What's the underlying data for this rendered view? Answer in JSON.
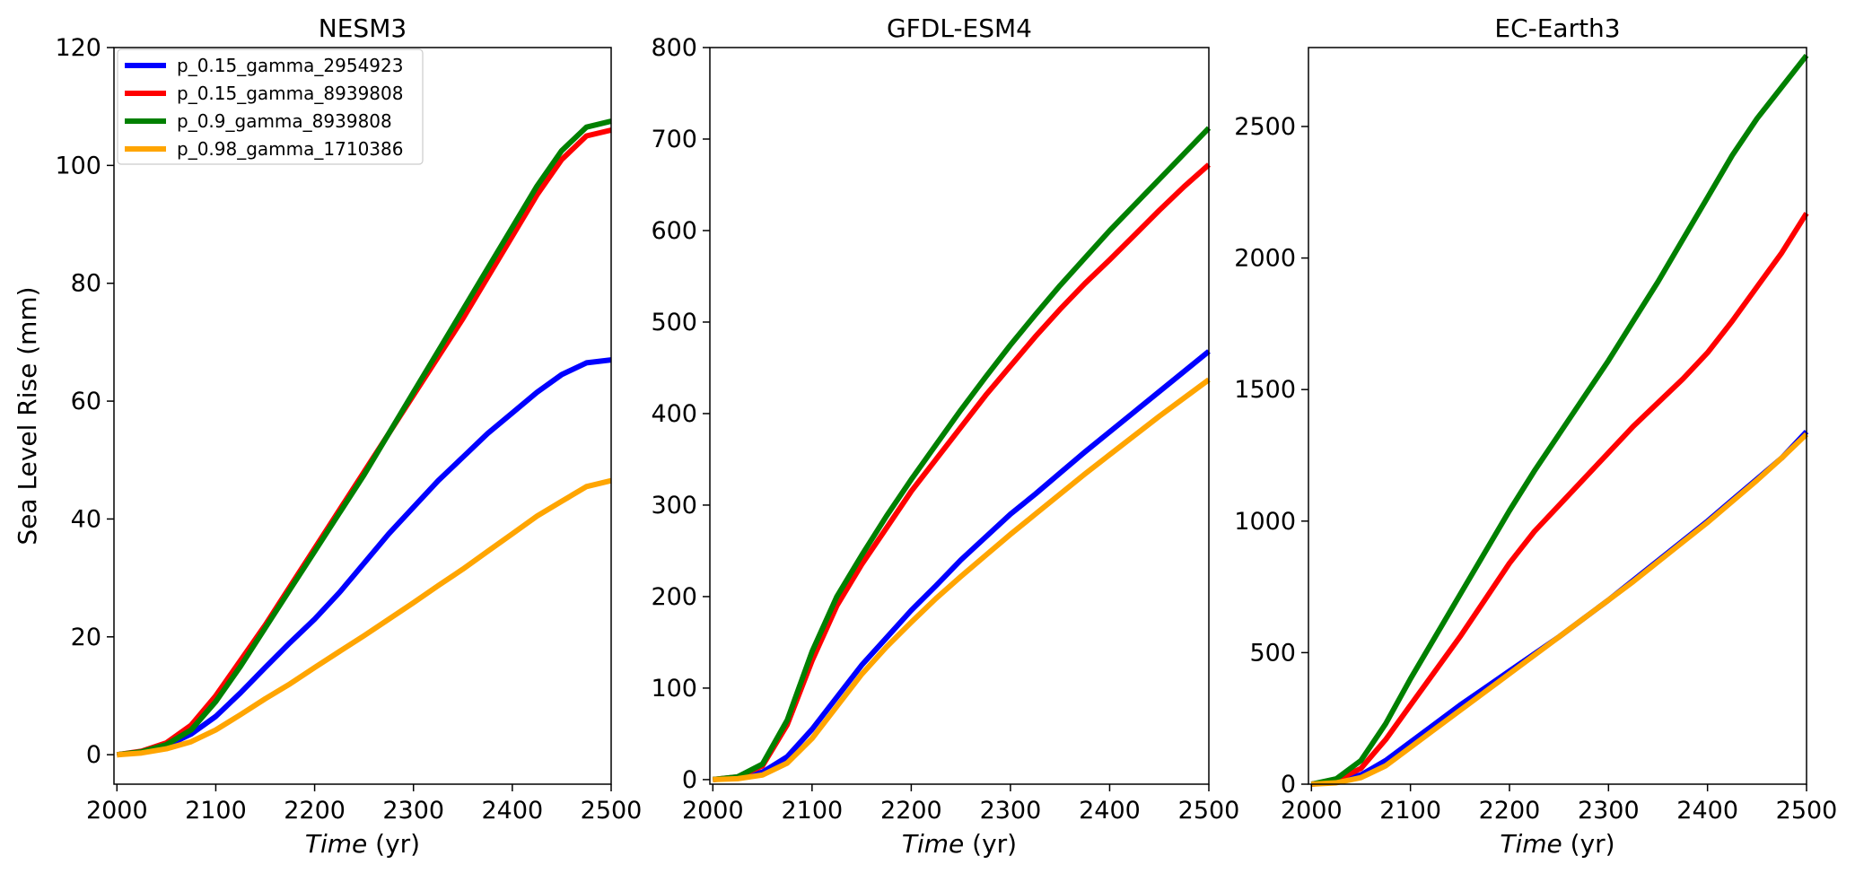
{
  "chart_data": [
    {
      "type": "line",
      "title": "NESM3",
      "xlabel_italic": "Time",
      "xlabel_unit": " (yr)",
      "ylabel": "Sea Level Rise (mm)",
      "xlim": [
        1997,
        2500
      ],
      "ylim": [
        -5,
        120
      ],
      "xticks": [
        2000,
        2100,
        2200,
        2300,
        2400,
        2500
      ],
      "yticks": [
        0,
        20,
        40,
        60,
        80,
        100,
        120
      ],
      "legend": "upper-left",
      "grid": false,
      "x": [
        2000,
        2025,
        2050,
        2075,
        2100,
        2125,
        2150,
        2175,
        2200,
        2225,
        2250,
        2275,
        2300,
        2325,
        2350,
        2375,
        2400,
        2425,
        2450,
        2475,
        2500
      ],
      "series": [
        {
          "name": "p_0.15_gamma_2954923",
          "color": "#0000ff",
          "values": [
            0,
            0.5,
            1.5,
            3.5,
            6.5,
            10.5,
            14.8,
            19.0,
            23.0,
            27.5,
            32.5,
            37.5,
            42.0,
            46.5,
            50.5,
            54.5,
            58.0,
            61.5,
            64.5,
            66.5,
            67.0
          ]
        },
        {
          "name": "p_0.15_gamma_8939808",
          "color": "#ff0000",
          "values": [
            0,
            0.6,
            2.0,
            5.0,
            10.0,
            16.0,
            22.0,
            28.5,
            35.0,
            41.5,
            48.0,
            54.5,
            61.0,
            67.5,
            74.0,
            81.0,
            88.0,
            95.0,
            101.0,
            105.0,
            106.0
          ]
        },
        {
          "name": "p_0.9_gamma_8939808",
          "color": "#008000",
          "values": [
            0,
            0.5,
            1.7,
            4.2,
            9.0,
            15.0,
            21.5,
            28.0,
            34.5,
            41.0,
            47.5,
            54.5,
            61.5,
            68.5,
            75.5,
            82.5,
            89.5,
            96.5,
            102.5,
            106.5,
            107.5
          ]
        },
        {
          "name": "p_0.98_gamma_1710386",
          "color": "#ffa500",
          "values": [
            0,
            0.3,
            1.0,
            2.2,
            4.2,
            6.8,
            9.5,
            12.0,
            14.8,
            17.5,
            20.2,
            23.0,
            25.8,
            28.7,
            31.5,
            34.5,
            37.5,
            40.5,
            43.0,
            45.5,
            46.5
          ]
        }
      ]
    },
    {
      "type": "line",
      "title": "GFDL-ESM4",
      "xlabel_italic": "Time",
      "xlabel_unit": " (yr)",
      "ylabel": "",
      "xlim": [
        1997,
        2500
      ],
      "ylim": [
        -5,
        800
      ],
      "xticks": [
        2000,
        2100,
        2200,
        2300,
        2400,
        2500
      ],
      "yticks": [
        0,
        100,
        200,
        300,
        400,
        500,
        600,
        700,
        800
      ],
      "grid": false,
      "x": [
        2000,
        2025,
        2050,
        2075,
        2100,
        2125,
        2150,
        2175,
        2200,
        2225,
        2250,
        2275,
        2300,
        2325,
        2350,
        2375,
        2400,
        2425,
        2450,
        2475,
        2500
      ],
      "series": [
        {
          "name": "p_0.15_gamma_2954923",
          "color": "#0000ff",
          "values": [
            0,
            2,
            8,
            25,
            55,
            90,
            125,
            155,
            185,
            212,
            240,
            265,
            290,
            312,
            335,
            358,
            380,
            402,
            424,
            446,
            468
          ]
        },
        {
          "name": "p_0.15_gamma_8939808",
          "color": "#ff0000",
          "values": [
            0,
            3,
            15,
            60,
            130,
            190,
            235,
            275,
            315,
            350,
            385,
            420,
            452,
            484,
            514,
            542,
            568,
            595,
            622,
            648,
            672
          ]
        },
        {
          "name": "p_0.9_gamma_8939808",
          "color": "#008000",
          "values": [
            0,
            3,
            17,
            65,
            140,
            200,
            245,
            288,
            328,
            366,
            404,
            440,
            475,
            508,
            540,
            570,
            600,
            628,
            656,
            684,
            712
          ]
        },
        {
          "name": "p_0.98_gamma_1710386",
          "color": "#ffa500",
          "values": [
            0,
            1,
            5,
            18,
            45,
            80,
            115,
            145,
            172,
            198,
            222,
            245,
            268,
            290,
            312,
            334,
            355,
            376,
            397,
            417,
            437
          ]
        }
      ]
    },
    {
      "type": "line",
      "title": "EC-Earth3",
      "xlabel_italic": "Time",
      "xlabel_unit": " (yr)",
      "ylabel": "",
      "xlim": [
        1997,
        2500
      ],
      "ylim": [
        0,
        2800
      ],
      "xticks": [
        2000,
        2100,
        2200,
        2300,
        2400,
        2500
      ],
      "yticks": [
        0,
        500,
        1000,
        1500,
        2000,
        2500
      ],
      "grid": false,
      "x": [
        2000,
        2025,
        2050,
        2075,
        2100,
        2125,
        2150,
        2175,
        2200,
        2225,
        2250,
        2275,
        2300,
        2325,
        2350,
        2375,
        2400,
        2425,
        2450,
        2475,
        2500
      ],
      "series": [
        {
          "name": "p_0.15_gamma_2954923",
          "color": "#0000ff",
          "values": [
            0,
            10,
            35,
            90,
            160,
            230,
            300,
            365,
            430,
            495,
            560,
            630,
            700,
            775,
            850,
            925,
            1000,
            1080,
            1160,
            1240,
            1340
          ]
        },
        {
          "name": "p_0.15_gamma_8939808",
          "color": "#ff0000",
          "values": [
            0,
            15,
            60,
            170,
            300,
            430,
            560,
            700,
            840,
            960,
            1060,
            1160,
            1260,
            1360,
            1450,
            1540,
            1640,
            1760,
            1890,
            2020,
            2170
          ]
        },
        {
          "name": "p_0.9_gamma_8939808",
          "color": "#008000",
          "values": [
            0,
            20,
            90,
            230,
            400,
            560,
            720,
            880,
            1040,
            1190,
            1330,
            1470,
            1610,
            1760,
            1910,
            2070,
            2230,
            2390,
            2530,
            2650,
            2770
          ]
        },
        {
          "name": "p_0.98_gamma_1710386",
          "color": "#ffa500",
          "values": [
            0,
            5,
            25,
            70,
            140,
            210,
            280,
            350,
            420,
            490,
            560,
            630,
            700,
            770,
            845,
            920,
            995,
            1075,
            1155,
            1240,
            1330
          ]
        }
      ]
    }
  ]
}
